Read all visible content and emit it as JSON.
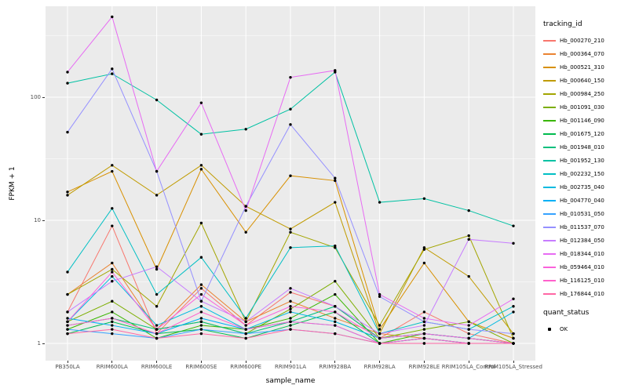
{
  "figure": {
    "panel_bg": "#EBEBEB",
    "grid_color": "#FFFFFF",
    "tick_text_color": "#4D4D4D",
    "point_color": "#000000"
  },
  "axes": {
    "x_label": "sample_name",
    "y_label": "FPKM + 1",
    "y_ticks": [
      {
        "value": 1,
        "label": "1"
      },
      {
        "value": 10,
        "label": "10"
      },
      {
        "value": 100,
        "label": "100"
      }
    ],
    "y_minor": [
      3.1623,
      31.623,
      316.23
    ]
  },
  "legend": {
    "tracking_title": "tracking_id",
    "quant_title": "quant_status",
    "quant_items": [
      {
        "label": "OK"
      }
    ]
  },
  "chart_data": {
    "type": "line",
    "title": "",
    "xlabel": "sample_name",
    "ylabel": "FPKM + 1",
    "y_scale": "log10",
    "ylim": [
      1,
      548
    ],
    "grid": true,
    "legend_position": "right",
    "categories": [
      "PB350LA",
      "RRIM600LA",
      "RRIM600LE",
      "RRIM600SE",
      "RRIM600PE",
      "RRIM901LA",
      "RRIM928BA",
      "RRIM928LA",
      "RRIM928LE",
      "RRIM105LA_Control",
      "RRIM105LA_Stressed"
    ],
    "series": [
      {
        "name": "Hb_000270_210",
        "color": "#F8766D",
        "values": [
          1.8,
          9.0,
          1.2,
          2.8,
          1.4,
          2.6,
          2.0,
          1.1,
          1.8,
          1.2,
          1.0
        ]
      },
      {
        "name": "Hb_000364_070",
        "color": "#EA8331",
        "values": [
          2.5,
          4.5,
          1.3,
          3.0,
          1.5,
          2.2,
          1.6,
          1.2,
          1.1,
          1.0,
          1.0
        ]
      },
      {
        "name": "Hb_000521_310",
        "color": "#D89000",
        "values": [
          17,
          25,
          4.0,
          26,
          8.0,
          23,
          21,
          1.3,
          4.5,
          1.5,
          1.1
        ]
      },
      {
        "name": "Hb_000640_150",
        "color": "#C09B00",
        "values": [
          16,
          28,
          16,
          28,
          13,
          8.5,
          14,
          1.2,
          6.0,
          3.5,
          1.2
        ]
      },
      {
        "name": "Hb_000984_250",
        "color": "#A3A500",
        "values": [
          2.5,
          4.0,
          2.0,
          9.5,
          1.5,
          8.0,
          6.0,
          1.4,
          5.8,
          7.5,
          1.1
        ]
      },
      {
        "name": "Hb_001091_030",
        "color": "#7CAE00",
        "values": [
          1.5,
          2.2,
          1.3,
          1.5,
          1.2,
          1.9,
          3.2,
          1.1,
          1.3,
          1.5,
          1.0
        ]
      },
      {
        "name": "Hb_001146_090",
        "color": "#39B600",
        "values": [
          1.3,
          1.8,
          1.1,
          1.4,
          1.3,
          1.6,
          2.5,
          1.0,
          1.2,
          1.1,
          1.0
        ]
      },
      {
        "name": "Hb_001675_120",
        "color": "#00BB4E",
        "values": [
          1.2,
          1.5,
          1.2,
          1.3,
          1.1,
          1.4,
          1.8,
          1.0,
          1.1,
          1.0,
          1.0
        ]
      },
      {
        "name": "Hb_001948_010",
        "color": "#00BF7D",
        "values": [
          1.4,
          1.6,
          1.3,
          1.5,
          1.2,
          1.5,
          2.0,
          1.1,
          1.2,
          1.1,
          1.0
        ]
      },
      {
        "name": "Hb_001952_130",
        "color": "#00C1A3",
        "values": [
          130,
          155,
          95,
          50,
          55,
          80,
          160,
          14,
          15,
          12,
          9
        ]
      },
      {
        "name": "Hb_002232_150",
        "color": "#00BFC4",
        "values": [
          3.8,
          12.5,
          2.5,
          5.0,
          1.6,
          6.0,
          6.2,
          1.2,
          1.5,
          1.3,
          2.0
        ]
      },
      {
        "name": "Hb_002735_040",
        "color": "#00BAE0",
        "values": [
          1.5,
          3.5,
          1.4,
          2.0,
          1.3,
          1.8,
          1.5,
          1.1,
          1.2,
          1.1,
          1.8
        ]
      },
      {
        "name": "Hb_004770_040",
        "color": "#00B0F6",
        "values": [
          1.6,
          1.4,
          1.2,
          1.6,
          1.3,
          1.5,
          1.4,
          1.0,
          1.1,
          1.0,
          1.0
        ]
      },
      {
        "name": "Hb_010531_050",
        "color": "#35A2FF",
        "values": [
          1.3,
          1.2,
          1.1,
          1.3,
          1.2,
          1.3,
          1.2,
          1.0,
          1.0,
          1.0,
          1.0
        ]
      },
      {
        "name": "Hb_011537_070",
        "color": "#9590FF",
        "values": [
          52,
          170,
          25,
          2.2,
          13,
          60,
          22,
          2.4,
          1.5,
          1.3,
          1.2
        ]
      },
      {
        "name": "Hb_012384_050",
        "color": "#C77CFF",
        "values": [
          1.8,
          3.2,
          4.2,
          2.2,
          1.5,
          2.8,
          2.0,
          1.2,
          1.4,
          7.0,
          6.5
        ]
      },
      {
        "name": "Hb_018344_010",
        "color": "#E76BF3",
        "values": [
          160,
          450,
          25,
          90,
          12,
          145,
          165,
          2.5,
          1.6,
          1.4,
          2.3
        ]
      },
      {
        "name": "Hb_059464_010",
        "color": "#FA62DB",
        "values": [
          1.5,
          3.8,
          1.3,
          2.5,
          1.4,
          2.0,
          1.8,
          1.1,
          1.2,
          1.1,
          1.0
        ]
      },
      {
        "name": "Hb_116125_010",
        "color": "#FF61CC",
        "values": [
          1.4,
          1.6,
          1.2,
          1.8,
          1.3,
          1.5,
          1.4,
          1.0,
          1.1,
          1.0,
          1.0
        ]
      },
      {
        "name": "Hb_176844_010",
        "color": "#FF67A4",
        "values": [
          1.2,
          1.3,
          1.1,
          1.2,
          1.1,
          1.3,
          1.2,
          1.0,
          1.0,
          1.0,
          1.0
        ]
      }
    ]
  }
}
